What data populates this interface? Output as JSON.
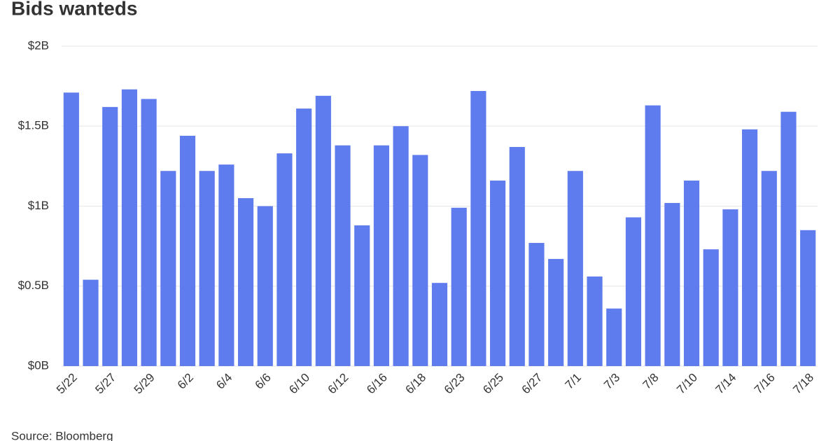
{
  "chart_data": {
    "type": "bar",
    "title": "Bids wanteds",
    "source": "Source: Bloomberg",
    "categories": [
      "5/22",
      null,
      "5/27",
      null,
      "5/29",
      null,
      "6/2",
      null,
      "6/4",
      null,
      "6/6",
      null,
      "6/10",
      null,
      "6/12",
      null,
      "6/16",
      null,
      "6/18",
      null,
      "6/23",
      null,
      "6/25",
      null,
      "6/27",
      null,
      "7/1",
      null,
      "7/3",
      null,
      "7/8",
      null,
      "7/10",
      null,
      "7/14",
      null,
      "7/16",
      null,
      "7/18"
    ],
    "values": [
      1.71,
      0.54,
      1.62,
      1.73,
      1.67,
      1.22,
      1.44,
      1.22,
      1.26,
      1.05,
      1.0,
      1.33,
      1.61,
      1.69,
      1.38,
      0.88,
      1.38,
      1.5,
      1.32,
      0.52,
      0.99,
      1.72,
      1.16,
      1.37,
      0.77,
      0.67,
      1.22,
      0.56,
      0.36,
      0.93,
      1.63,
      1.02,
      1.16,
      0.73,
      0.98,
      1.48,
      1.22,
      1.59,
      0.85
    ],
    "color": "#5f7cee",
    "ylim": [
      0,
      2
    ],
    "yticks": [
      {
        "value": 0,
        "label": "$0B"
      },
      {
        "value": 0.5,
        "label": "$0.5B"
      },
      {
        "value": 1,
        "label": "$1B"
      },
      {
        "value": 1.5,
        "label": "$1.5B"
      },
      {
        "value": 2,
        "label": "$2B"
      }
    ],
    "grid": true
  }
}
